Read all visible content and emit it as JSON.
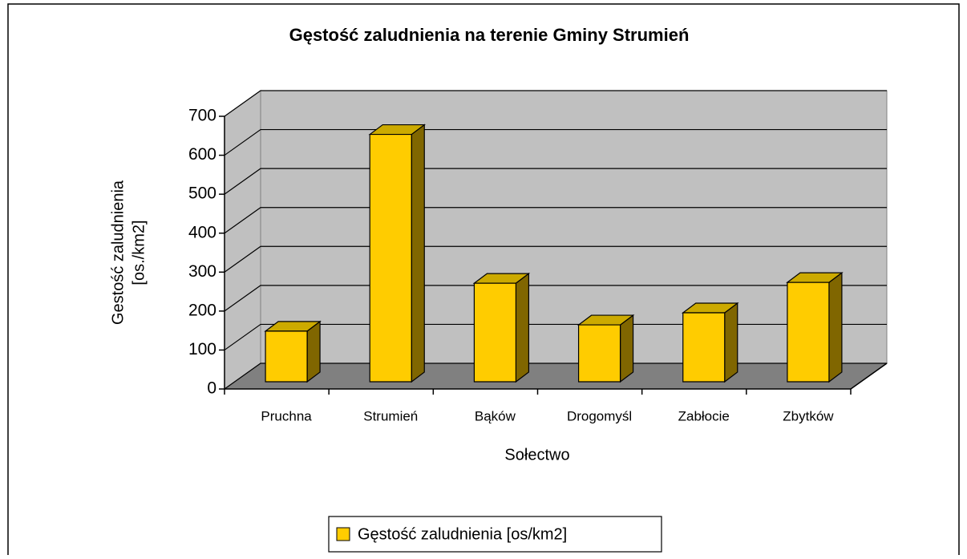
{
  "chart_data": {
    "type": "bar3d",
    "title": "Gęstość zaludnienia na terenie Gminy Strumień",
    "xlabel": "Sołectwo",
    "ylabel": [
      "Gestość zaludnienia",
      "[os./km2]"
    ],
    "categories": [
      "Pruchna",
      "Strumień",
      "Bąków",
      "Drogomyśl",
      "Zabłocie",
      "Zbytków"
    ],
    "series": [
      {
        "name": "Gęstość zaludnienia [os/km2]",
        "color": "#ffcc00",
        "values": [
          130,
          635,
          253,
          146,
          177,
          255
        ]
      }
    ],
    "ylim": [
      0,
      700
    ],
    "yticks": [
      0,
      100,
      200,
      300,
      400,
      500,
      600,
      700
    ],
    "grid": true,
    "legend": "bottom"
  }
}
